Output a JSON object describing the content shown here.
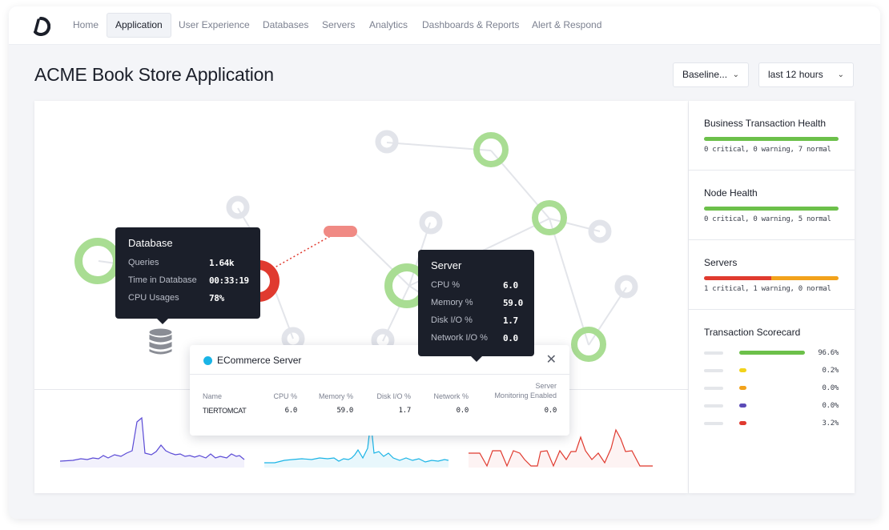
{
  "nav": {
    "items": [
      "Home",
      "Application",
      "User Experience",
      "Databases",
      "Servers",
      "Analytics",
      "Dashboards & Reports",
      "Alert & Respond"
    ],
    "active": "Application"
  },
  "page": {
    "title": "ACME Book Store Application",
    "baseline_select": "Baseline...",
    "time_select": "last 12 hours"
  },
  "database_tooltip": {
    "title": "Database",
    "rows": [
      {
        "label": "Queries",
        "value": "1.64k"
      },
      {
        "label": "Time in Database",
        "value": "00:33:19"
      },
      {
        "label": "CPU Usages",
        "value": "78%"
      }
    ]
  },
  "server_tooltip": {
    "title": "Server",
    "rows": [
      {
        "label": "CPU %",
        "value": "6.0"
      },
      {
        "label": "Memory %",
        "value": "59.0"
      },
      {
        "label": "Disk I/O %",
        "value": "1.7"
      },
      {
        "label": "Network I/O %",
        "value": "0.0"
      }
    ]
  },
  "ecommerce_popup": {
    "title": "ECommerce Server",
    "status_color": "#1ab4e6",
    "headers": [
      "Name",
      "CPU %",
      "Memory %",
      "Disk I/O %",
      "Network %",
      "Server Monitoring Enabled"
    ],
    "server_header_line1": "Server",
    "server_header_line2": "Monitoring Enabled",
    "row": [
      "TIERTOMCAT",
      "6.0",
      "59.0",
      "1.7",
      "0.0",
      "0.0"
    ]
  },
  "side": {
    "business_transaction_health": {
      "title": "Business Transaction Health",
      "summary": "0 critical, 0 warning, 7 normal",
      "critical": 0,
      "warning": 0,
      "normal": 7
    },
    "node_health": {
      "title": "Node Health",
      "summary": "0 critical, 0 warning, 5 normal",
      "critical": 0,
      "warning": 0,
      "normal": 5
    },
    "servers": {
      "title": "Servers",
      "summary": "1 critical, 1 warning, 0 normal",
      "critical": 1,
      "warning": 1,
      "normal": 0
    },
    "transaction_scorecard": {
      "title": "Transaction Scorecard",
      "rows": [
        {
          "value": "96.6%",
          "fraction": 0.966,
          "color": "#6cc04a"
        },
        {
          "value": "0.2%",
          "fraction": 0.002,
          "color": "#f2d31b"
        },
        {
          "value": "0.0%",
          "fraction": 0.0,
          "color": "#f2a21b"
        },
        {
          "value": "0.0%",
          "fraction": 0.0,
          "color": "#5b4bb7"
        },
        {
          "value": "3.2%",
          "fraction": 0.032,
          "color": "#e03a2f"
        }
      ]
    }
  },
  "colors": {
    "normal": "#6cc04a",
    "warning": "#f2a21b",
    "critical": "#e03a2f",
    "node_grey": "#e2e4ea",
    "node_green": "#a9dd93",
    "sparkline_purple": "#5b4bd6",
    "sparkline_cyan": "#1ab4e6",
    "sparkline_red": "#e03a2f"
  }
}
